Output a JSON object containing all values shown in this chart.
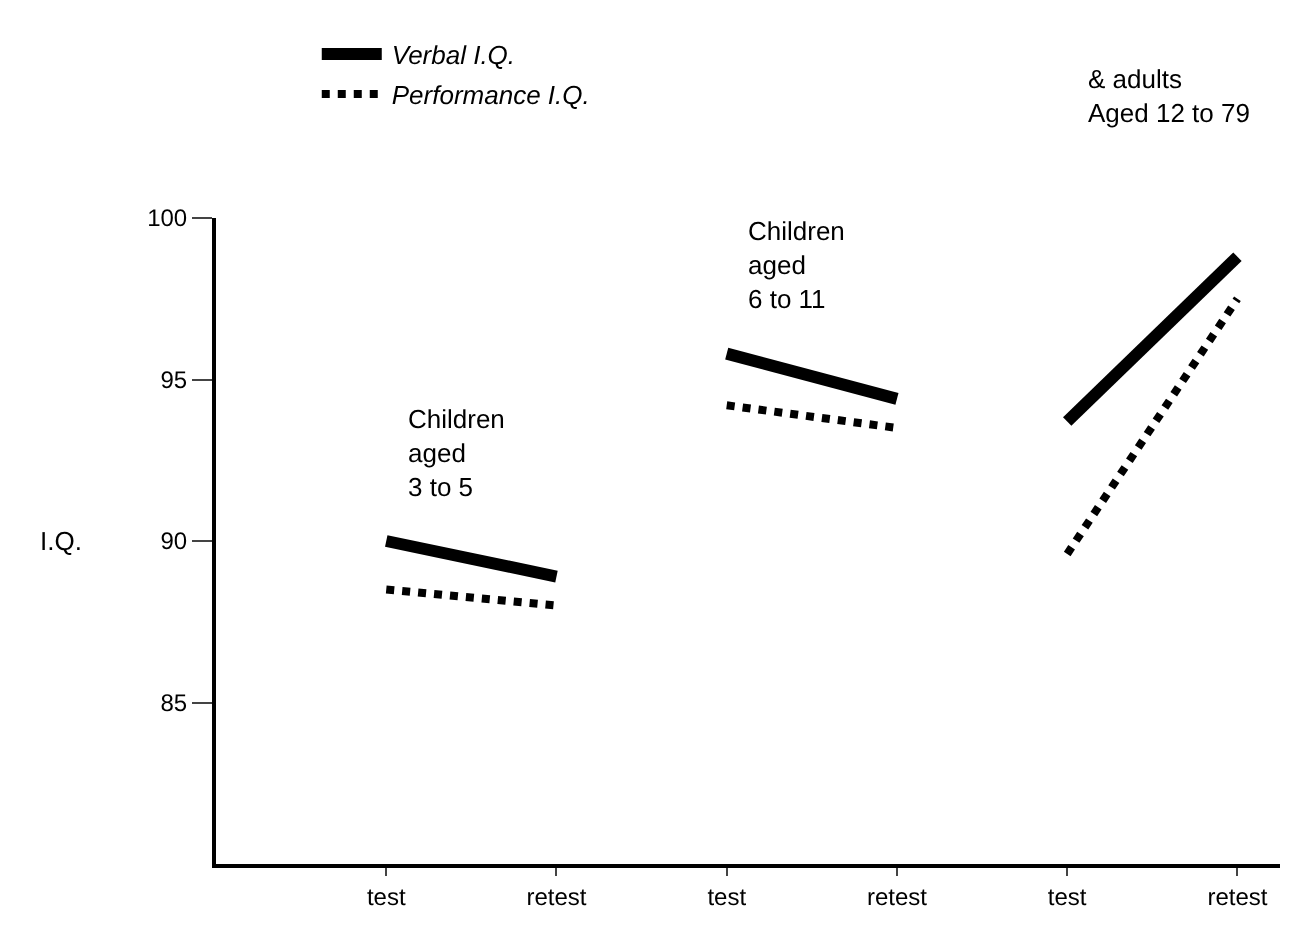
{
  "chart_data": {
    "type": "line",
    "ylabel": "I.Q.",
    "categories": [
      "test",
      "retest",
      "test",
      "retest",
      "test",
      "retest"
    ],
    "series": [
      {
        "name": "Verbal I.Q.",
        "color": "#000000",
        "line_style": "solid",
        "values": [
          90.0,
          88.9,
          null,
          null,
          null,
          null
        ]
      },
      {
        "color": "#000000",
        "line_style": "solid",
        "values": [
          null,
          null,
          95.8,
          94.4,
          null,
          null
        ]
      },
      {
        "color": "#000000",
        "line_style": "solid",
        "values": [
          null,
          null,
          null,
          null,
          93.7,
          98.8
        ]
      },
      {
        "name": "Performance I.Q.",
        "color": "#000000",
        "line_style": "dotted",
        "values": [
          88.5,
          88.0,
          null,
          null,
          null,
          null
        ]
      },
      {
        "color": "#000000",
        "line_style": "dotted",
        "values": [
          null,
          null,
          94.2,
          93.5,
          null,
          null
        ]
      },
      {
        "color": "#000000",
        "line_style": "dotted",
        "values": [
          null,
          null,
          null,
          null,
          89.6,
          97.5
        ]
      }
    ],
    "ylim": [
      80,
      100
    ],
    "yticks": [
      85,
      90,
      95,
      100
    ],
    "annotations": [
      "Children\naged\n3 to 5",
      "Children\naged\n6 to 11",
      "& adults\nAged 12 to 79"
    ],
    "legend": "top",
    "marker": "none"
  }
}
